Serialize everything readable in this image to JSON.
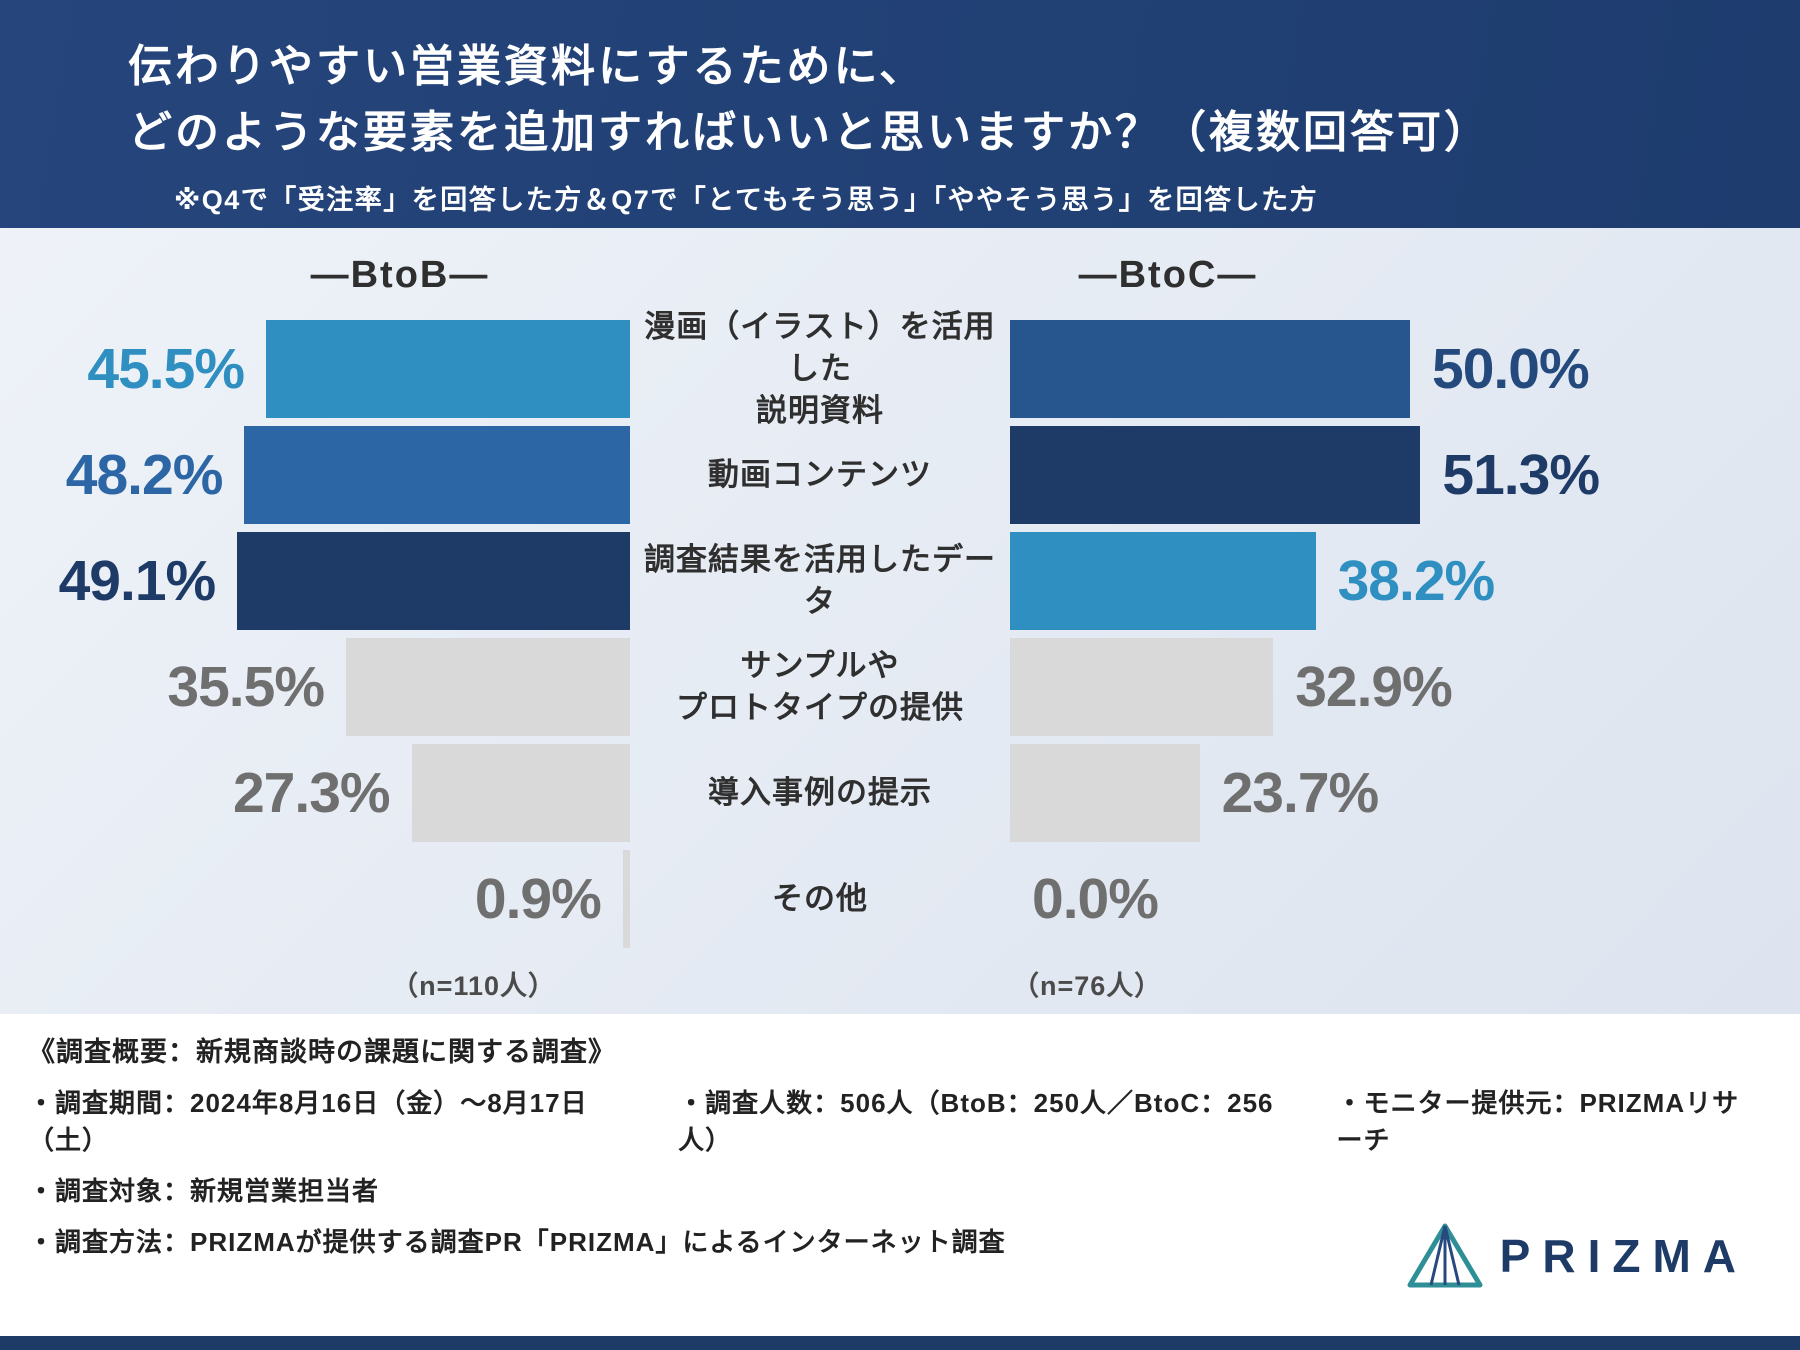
{
  "header": {
    "title_line1": "伝わりやすい営業資料にするために、",
    "title_line2": "どのような要素を追加すればいいと思いますか？（複数回答可）",
    "subtitle": "※Q4で「受注率」を回答した方＆Q7で「とてもそう思う」「ややそう思う」を回答した方"
  },
  "chart_data": {
    "type": "bar",
    "layout": "diverging-horizontal",
    "left_header": "―BtoB―",
    "right_header": "―BtoC―",
    "unit": "%",
    "x_max": 55,
    "categories": [
      "漫画（イラスト）を活用した\n説明資料",
      "動画コンテンツ",
      "調査結果を活用したデータ",
      "サンプルや\nプロトタイプの提供",
      "導入事例の提示",
      "その他"
    ],
    "series": [
      {
        "name": "BtoB",
        "n_label": "（n=110人）",
        "values": [
          45.5,
          48.2,
          49.1,
          35.5,
          27.3,
          0.9
        ],
        "labels": [
          "45.5%",
          "48.2%",
          "49.1%",
          "35.5%",
          "27.3%",
          "0.9%"
        ],
        "bar_colors": [
          "#2e8fc0",
          "#2c66a5",
          "#1e3a66",
          "#d9d9d9",
          "#d9d9d9",
          "#d9d9d9"
        ],
        "label_colors": [
          "#2e8fc0",
          "#2c66a5",
          "#1e3a66",
          "#6f6f6f",
          "#6f6f6f",
          "#6f6f6f"
        ]
      },
      {
        "name": "BtoC",
        "n_label": "（n=76人）",
        "values": [
          50.0,
          51.3,
          38.2,
          32.9,
          23.7,
          0.0
        ],
        "labels": [
          "50.0%",
          "51.3%",
          "38.2%",
          "32.9%",
          "23.7%",
          "0.0%"
        ],
        "bar_colors": [
          "#27568f",
          "#1e3a66",
          "#2e8fc0",
          "#d9d9d9",
          "#d9d9d9",
          "#d9d9d9"
        ],
        "label_colors": [
          "#24497c",
          "#1e3a66",
          "#2e8fc0",
          "#6f6f6f",
          "#6f6f6f",
          "#6f6f6f"
        ]
      }
    ]
  },
  "footer": {
    "heading": "《調査概要：新規商談時の課題に関する調査》",
    "line1_items": [
      "・調査期間：2024年8月16日（金）〜8月17日（土）",
      "・調査人数：506人（BtoB：250人／BtoC：256人）",
      "・モニター提供元：PRIZMAリサーチ"
    ],
    "line2": "・調査対象：新規営業担当者",
    "line3": "・調査方法：PRIZMAが提供する調査PR「PRIZMA」によるインターネット調査",
    "logo_text": "PRIZMA"
  },
  "colors": {
    "header_bg": "#1e3c6e",
    "accent_navy": "#1e3a66",
    "accent_blue": "#2e8fc0",
    "accent_mid_blue": "#2c66a5",
    "bar_grey": "#d9d9d9",
    "chart_bg": "#e6ebf3"
  }
}
